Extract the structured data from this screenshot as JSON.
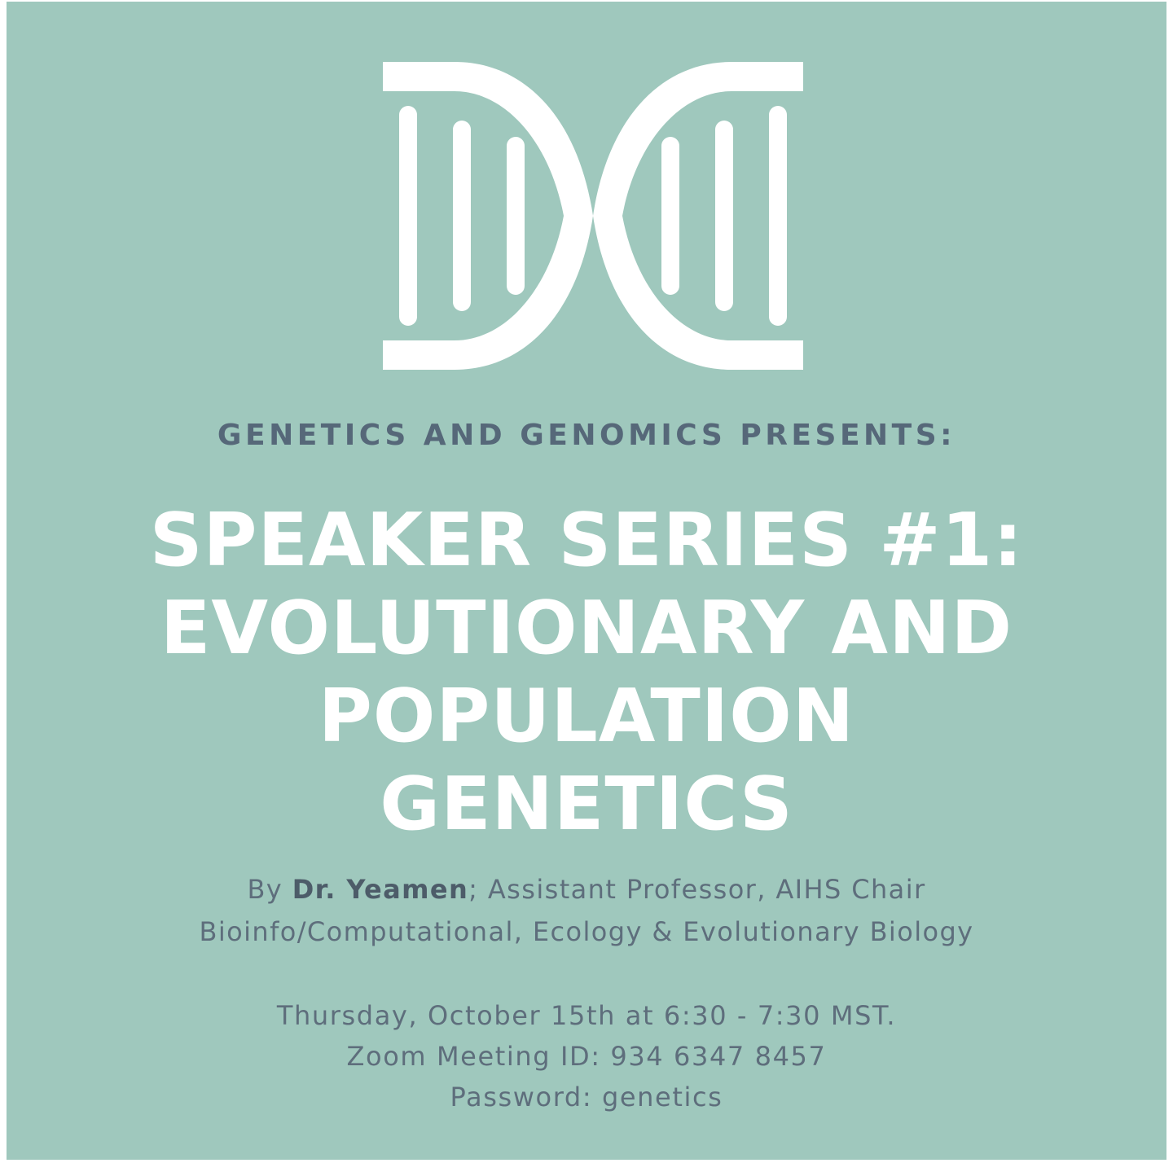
{
  "logo": {
    "icon": "dna-helix-icon",
    "color": "#ffffff"
  },
  "colors": {
    "background": "#9fc8bd",
    "heading_text": "#566879",
    "title_text": "#ffffff",
    "body_text": "#5e6e7c"
  },
  "presents": "GENETICS AND GENOMICS PRESENTS:",
  "title": {
    "line1": "SPEAKER SERIES #1:",
    "line2": "EVOLUTIONARY AND",
    "line3": "POPULATION",
    "line4": "GENETICS"
  },
  "speaker": {
    "prefix": "By ",
    "name": "Dr. Yeamen",
    "role": "; Assistant Professor, AIHS Chair",
    "department": "Bioinfo/Computational, Ecology & Evolutionary Biology"
  },
  "event": {
    "datetime": "Thursday, October 15th at 6:30 - 7:30 MST.",
    "zoom": "Zoom Meeting ID: 934 6347 8457",
    "password": "Password: genetics"
  }
}
